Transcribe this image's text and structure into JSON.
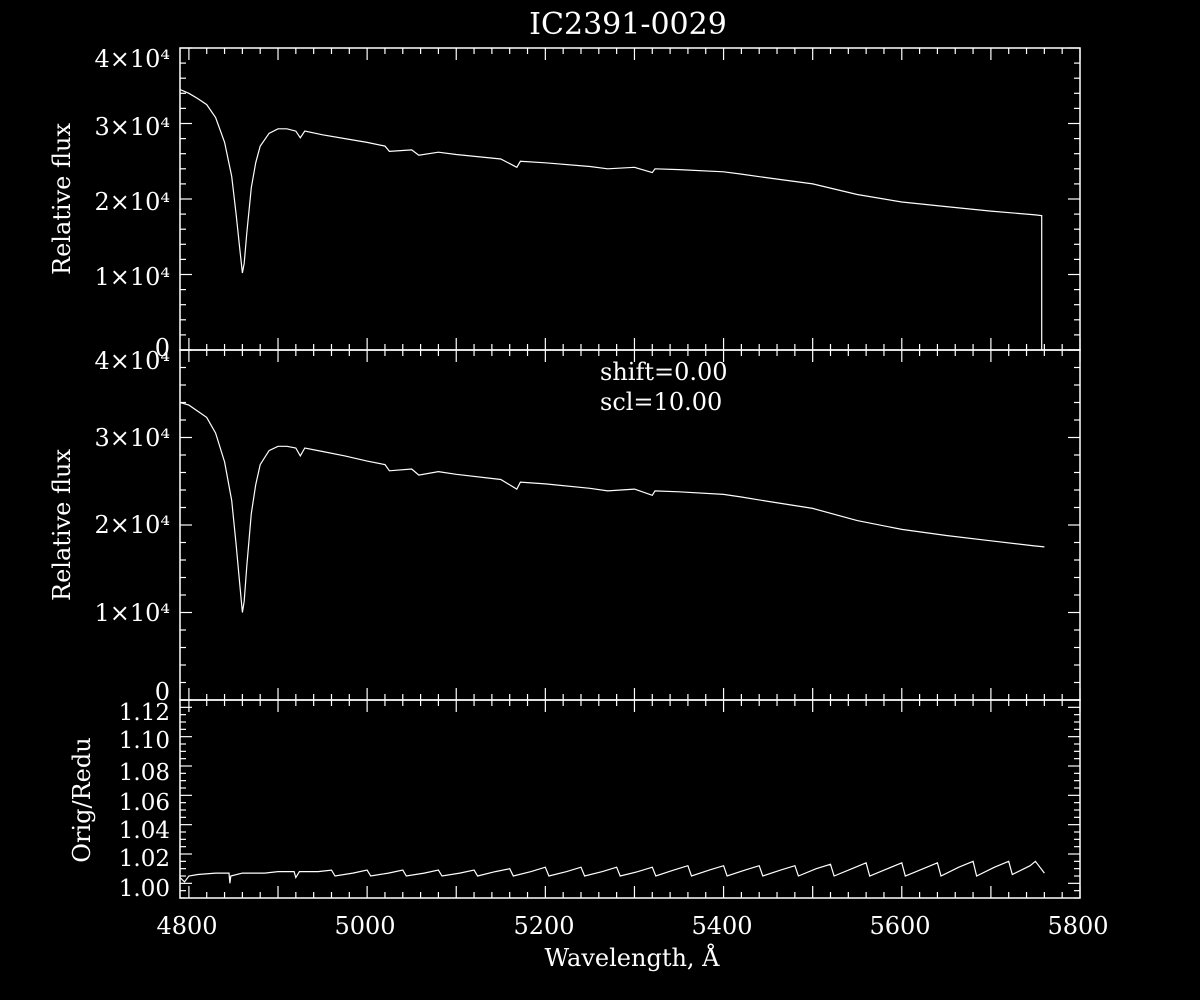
{
  "title": "IC2391-0029",
  "chart_data": [
    {
      "type": "line",
      "panel": "top",
      "ylabel": "Relative flux",
      "xlim": [
        4790,
        5800
      ],
      "ylim": [
        0,
        40000
      ],
      "ytick_labels": [
        "0",
        "1×10⁴",
        "2×10⁴",
        "3×10⁴",
        "4×10⁴"
      ],
      "series": [
        {
          "x": [
            4790,
            4800,
            4810,
            4820,
            4830,
            4840,
            4848,
            4853,
            4857,
            4860,
            4862,
            4865,
            4870,
            4875,
            4880,
            4890,
            4900,
            4910,
            4920,
            4925,
            4930,
            4950,
            4975,
            5000,
            5020,
            5025,
            5050,
            5058,
            5080,
            5100,
            5150,
            5168,
            5172,
            5200,
            5250,
            5270,
            5300,
            5320,
            5323,
            5350,
            5400,
            5420,
            5450,
            5500,
            5550,
            5600,
            5650,
            5700,
            5750,
            5757,
            5757
          ],
          "y": [
            34500,
            34000,
            33300,
            32500,
            30800,
            27500,
            23000,
            18000,
            13500,
            10200,
            11500,
            15500,
            21500,
            24800,
            27000,
            28700,
            29300,
            29300,
            29000,
            28100,
            29000,
            28500,
            28000,
            27500,
            27000,
            26300,
            26500,
            25800,
            26200,
            25900,
            25300,
            24200,
            25000,
            24800,
            24300,
            24000,
            24200,
            23500,
            24000,
            23900,
            23600,
            23300,
            22800,
            22000,
            20600,
            19600,
            19000,
            18400,
            17900,
            17800,
            0
          ]
        }
      ]
    },
    {
      "type": "line",
      "panel": "middle",
      "ylabel": "Relative flux",
      "annotations": [
        "shift=0.00",
        "scl=10.00"
      ],
      "xlim": [
        4790,
        5800
      ],
      "ylim": [
        0,
        40000
      ],
      "ytick_labels": [
        "0",
        "1×10⁴",
        "2×10⁴",
        "3×10⁴",
        "4×10⁴"
      ],
      "series": [
        {
          "x": [
            4790,
            4800,
            4810,
            4820,
            4830,
            4840,
            4848,
            4853,
            4857,
            4860,
            4862,
            4865,
            4870,
            4875,
            4880,
            4890,
            4900,
            4910,
            4920,
            4925,
            4930,
            4950,
            4975,
            5000,
            5020,
            5025,
            5050,
            5058,
            5080,
            5100,
            5150,
            5168,
            5172,
            5200,
            5250,
            5270,
            5300,
            5320,
            5323,
            5350,
            5400,
            5420,
            5450,
            5500,
            5550,
            5600,
            5650,
            5700,
            5750,
            5760
          ],
          "y": [
            34000,
            33700,
            33000,
            32300,
            30500,
            27200,
            22800,
            17800,
            13300,
            10000,
            11300,
            15300,
            21300,
            24600,
            26900,
            28500,
            29000,
            29000,
            28800,
            27900,
            28800,
            28400,
            27900,
            27300,
            26900,
            26200,
            26400,
            25700,
            26100,
            25800,
            25200,
            24100,
            24900,
            24700,
            24200,
            23900,
            24100,
            23400,
            23900,
            23800,
            23500,
            23200,
            22700,
            21900,
            20500,
            19500,
            18800,
            18200,
            17600,
            17500
          ]
        }
      ]
    },
    {
      "type": "line",
      "panel": "bottom",
      "xlabel": "Wavelength, Å",
      "ylabel": "Orig/Redu",
      "xlim": [
        4790,
        5800
      ],
      "ylim": [
        0.99,
        1.125
      ],
      "ytick_labels": [
        "1.00",
        "1.02",
        "1.04",
        "1.06",
        "1.08",
        "1.10",
        "1.12"
      ],
      "xtick_labels": [
        "4800",
        "5000",
        "5200",
        "5400",
        "5600",
        "5800"
      ],
      "series": [
        {
          "x": [
            4790,
            4795,
            4800,
            4810,
            4830,
            4845,
            4846,
            4847,
            4860,
            4885,
            4900,
            4918,
            4920,
            4924,
            4945,
            4960,
            4964,
            4984,
            5000,
            5004,
            5024,
            5040,
            5044,
            5064,
            5080,
            5084,
            5104,
            5120,
            5124,
            5144,
            5160,
            5164,
            5184,
            5200,
            5204,
            5224,
            5240,
            5244,
            5264,
            5280,
            5284,
            5304,
            5320,
            5324,
            5344,
            5360,
            5364,
            5384,
            5400,
            5404,
            5424,
            5440,
            5444,
            5464,
            5480,
            5484,
            5504,
            5520,
            5524,
            5544,
            5560,
            5564,
            5584,
            5600,
            5604,
            5624,
            5640,
            5644,
            5664,
            5680,
            5684,
            5704,
            5720,
            5724,
            5744,
            5750,
            5760
          ],
          "y": [
            1.004,
            1.001,
            1.005,
            1.006,
            1.007,
            1.007,
            1.0,
            1.005,
            1.007,
            1.007,
            1.008,
            1.008,
            1.004,
            1.008,
            1.008,
            1.009,
            1.005,
            1.007,
            1.009,
            1.005,
            1.007,
            1.009,
            1.005,
            1.007,
            1.009,
            1.005,
            1.007,
            1.009,
            1.005,
            1.008,
            1.01,
            1.005,
            1.008,
            1.011,
            1.005,
            1.008,
            1.011,
            1.005,
            1.008,
            1.011,
            1.005,
            1.008,
            1.011,
            1.005,
            1.009,
            1.012,
            1.005,
            1.009,
            1.012,
            1.005,
            1.009,
            1.012,
            1.005,
            1.009,
            1.012,
            1.005,
            1.01,
            1.013,
            1.005,
            1.01,
            1.014,
            1.005,
            1.01,
            1.014,
            1.005,
            1.01,
            1.014,
            1.005,
            1.011,
            1.015,
            1.005,
            1.011,
            1.015,
            1.006,
            1.012,
            1.015,
            1.007
          ]
        }
      ]
    }
  ]
}
